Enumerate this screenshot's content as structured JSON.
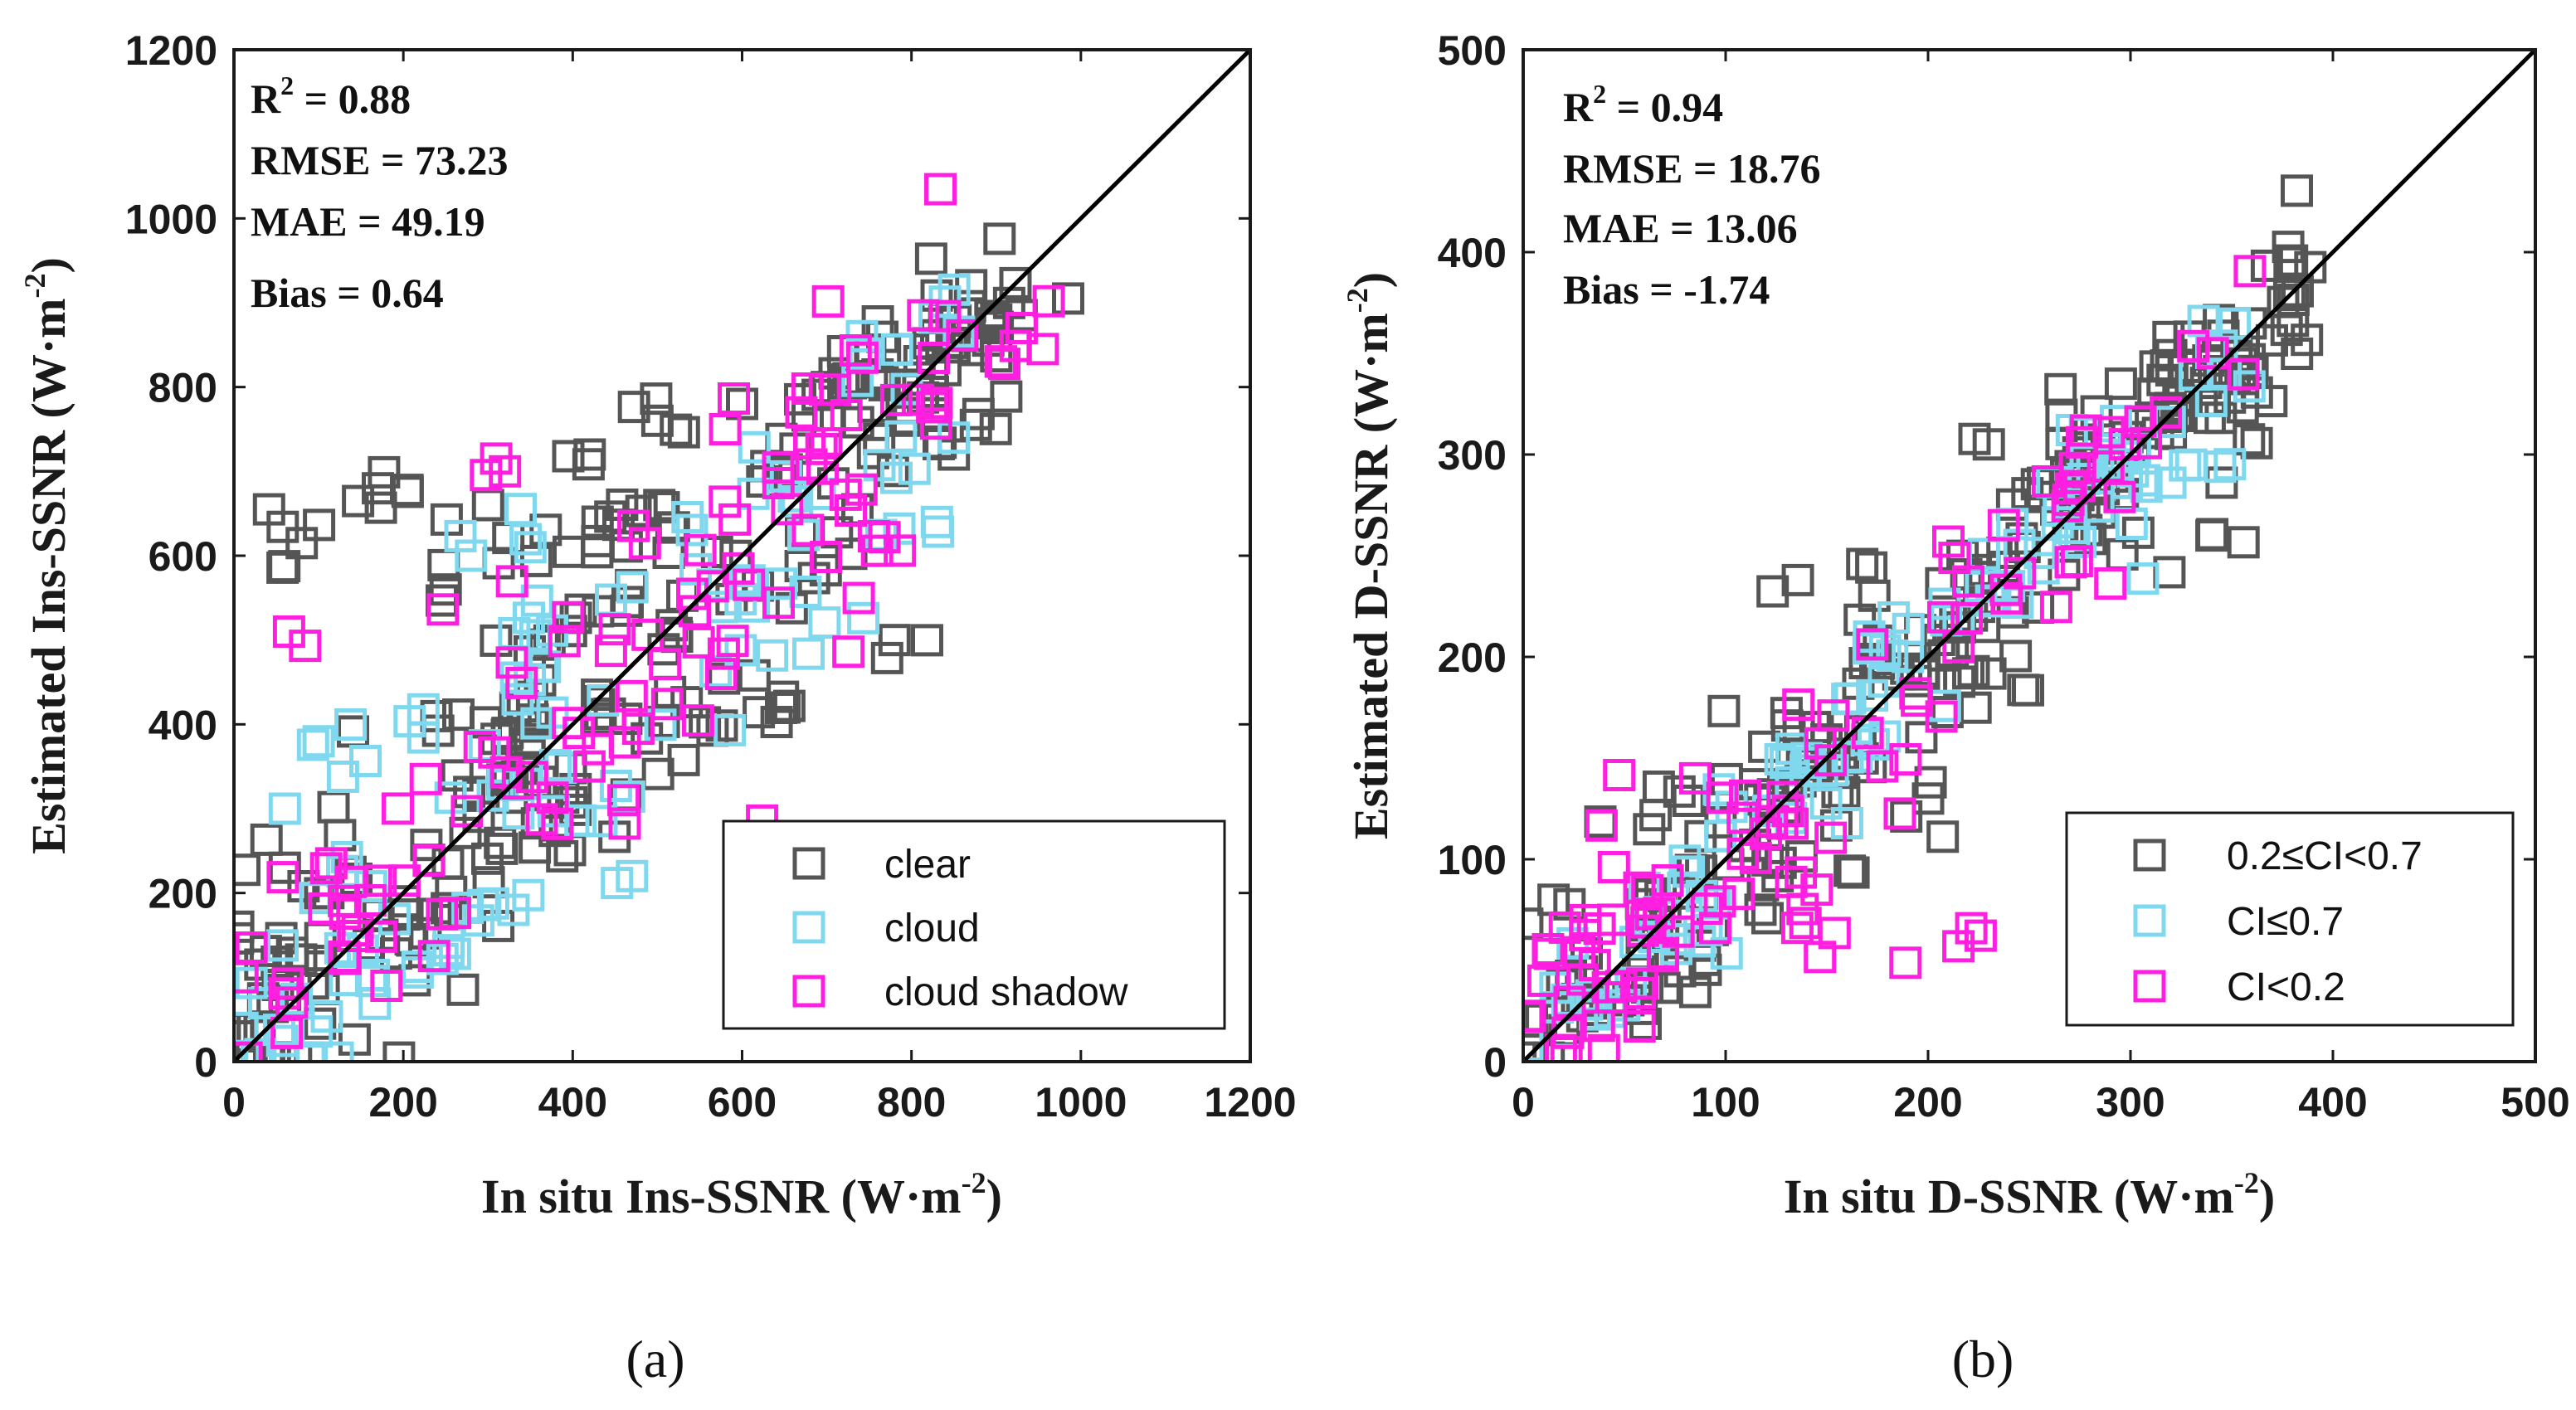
{
  "chart_data": [
    {
      "type": "scatter",
      "panel": "a",
      "caption": "(a)",
      "xlabel": "In situ Ins-SSNR (W·m",
      "xlabel_sup": "-2",
      "ylabel": "Estimated Ins-SSNR (W·m",
      "ylabel_sup": "-2",
      "xlim": [
        0,
        1200
      ],
      "ylim": [
        0,
        1200
      ],
      "xticks": [
        0,
        200,
        400,
        600,
        800,
        1000,
        1200
      ],
      "yticks": [
        0,
        200,
        400,
        600,
        800,
        1000,
        1200
      ],
      "reference_line": "1:1",
      "stats": {
        "r2_label": "R",
        "r2_sup": "2",
        "r2_value": " = 0.88",
        "rmse": "RMSE = 73.23",
        "mae": "MAE = 49.19",
        "bias": "Bias = 0.64"
      },
      "legend_position": "bottom-right",
      "series": [
        {
          "name": "clear",
          "color": "#555555",
          "color_key": "clear",
          "anchors": [
            [
              5,
              160
            ],
            [
              60,
              230
            ],
            [
              80,
              615
            ],
            [
              170,
              680
            ],
            [
              250,
              560
            ],
            [
              300,
              660
            ],
            [
              420,
              720
            ],
            [
              500,
              760
            ],
            [
              600,
              780
            ],
            [
              700,
              800
            ],
            [
              760,
              810
            ],
            [
              840,
              820
            ],
            [
              900,
              880
            ],
            [
              985,
              905
            ],
            [
              850,
              720
            ],
            [
              780,
              500
            ],
            [
              650,
              420
            ],
            [
              550,
              380
            ],
            [
              400,
              300
            ],
            [
              300,
              220
            ],
            [
              200,
              170
            ],
            [
              120,
              100
            ],
            [
              60,
              50
            ],
            [
              20,
              20
            ],
            [
              350,
              610
            ],
            [
              450,
              640
            ],
            [
              230,
              430
            ],
            [
              150,
              350
            ],
            [
              500,
              650
            ],
            [
              680,
              560
            ]
          ],
          "values": [
            [
              5,
              160
            ],
            [
              60,
              230
            ],
            [
              80,
              615
            ],
            [
              170,
              680
            ],
            [
              250,
              560
            ],
            [
              300,
              660
            ],
            [
              420,
              720
            ],
            [
              500,
              760
            ],
            [
              600,
              780
            ],
            [
              700,
              800
            ],
            [
              760,
              810
            ],
            [
              840,
              820
            ],
            [
              900,
              880
            ],
            [
              985,
              905
            ],
            [
              850,
              720
            ],
            [
              780,
              500
            ],
            [
              650,
              420
            ]
          ]
        },
        {
          "name": "cloud",
          "color": "#7fd8ee",
          "color_key": "cloud",
          "anchors": [
            [
              10,
              40
            ],
            [
              60,
              300
            ],
            [
              100,
              380
            ],
            [
              150,
              340
            ],
            [
              220,
              420
            ],
            [
              280,
              600
            ],
            [
              350,
              610
            ],
            [
              450,
              560
            ],
            [
              520,
              520
            ],
            [
              600,
              480
            ],
            [
              700,
              520
            ],
            [
              830,
              640
            ],
            [
              850,
              740
            ],
            [
              470,
              220
            ],
            [
              330,
              180
            ],
            [
              250,
              130
            ],
            [
              170,
              90
            ],
            [
              90,
              50
            ],
            [
              30,
              20
            ],
            [
              400,
              280
            ],
            [
              550,
              430
            ]
          ],
          "values": [
            [
              10,
              40
            ],
            [
              60,
              300
            ],
            [
              100,
              380
            ],
            [
              280,
              600
            ],
            [
              350,
              610
            ],
            [
              830,
              640
            ],
            [
              850,
              740
            ],
            [
              470,
              220
            ],
            [
              330,
              180
            ]
          ]
        },
        {
          "name": "cloud shadow",
          "color": "#ff1fe0",
          "color_key": "shadow",
          "anchors": [
            [
              10,
              100
            ],
            [
              65,
              510
            ],
            [
              130,
              180
            ],
            [
              200,
              460
            ],
            [
              300,
              560
            ],
            [
              320,
              700
            ],
            [
              420,
              520
            ],
            [
              480,
              630
            ],
            [
              580,
              750
            ],
            [
              670,
              770
            ],
            [
              700,
              700
            ],
            [
              760,
              620
            ],
            [
              780,
              800
            ],
            [
              930,
              870
            ],
            [
              955,
              845
            ],
            [
              460,
              310
            ],
            [
              360,
              300
            ],
            [
              250,
              150
            ],
            [
              180,
              90
            ],
            [
              60,
              80
            ],
            [
              120,
              160
            ],
            [
              540,
              560
            ],
            [
              620,
              680
            ],
            [
              500,
              500
            ]
          ],
          "values": [
            [
              10,
              100
            ],
            [
              65,
              510
            ],
            [
              320,
              700
            ],
            [
              580,
              750
            ],
            [
              670,
              770
            ],
            [
              930,
              870
            ],
            [
              955,
              845
            ],
            [
              460,
              310
            ],
            [
              180,
              90
            ]
          ]
        }
      ]
    },
    {
      "type": "scatter",
      "panel": "b",
      "caption": "(b)",
      "xlabel": "In situ D-SSNR (W·m",
      "xlabel_sup": "-2",
      "ylabel": "Estimated D-SSNR (W·m",
      "ylabel_sup": "-2",
      "xlim": [
        0,
        500
      ],
      "ylim": [
        0,
        500
      ],
      "xticks": [
        0,
        100,
        200,
        300,
        400,
        500
      ],
      "yticks": [
        0,
        100,
        200,
        300,
        400,
        500
      ],
      "reference_line": "1:1",
      "stats": {
        "r2_label": "R",
        "r2_sup": "2",
        "r2_value": " = 0.94",
        "rmse": "RMSE = 18.76",
        "mae": "MAE = 13.06",
        "bias": "Bias = -1.74"
      },
      "legend_position": "bottom-right",
      "series": [
        {
          "name": "0.2≤CI<0.7",
          "color": "#555555",
          "color_key": "clear",
          "anchors": [
            [
              5,
              10
            ],
            [
              15,
              80
            ],
            [
              40,
              110
            ],
            [
              70,
              140
            ],
            [
              100,
              180
            ],
            [
              130,
              220
            ],
            [
              160,
              240
            ],
            [
              200,
              250
            ],
            [
              230,
              305
            ],
            [
              280,
              310
            ],
            [
              310,
              330
            ],
            [
              355,
              345
            ],
            [
              355,
              320
            ],
            [
              340,
              260
            ],
            [
              300,
              250
            ],
            [
              250,
              180
            ],
            [
              200,
              130
            ],
            [
              160,
              90
            ],
            [
              120,
              70
            ],
            [
              80,
              40
            ],
            [
              40,
              15
            ],
            [
              180,
              200
            ],
            [
              260,
              280
            ],
            [
              220,
              210
            ],
            [
              140,
              150
            ]
          ],
          "values": [
            [
              15,
              80
            ],
            [
              230,
              305
            ],
            [
              355,
              345
            ],
            [
              340,
              260
            ],
            [
              200,
              130
            ]
          ]
        },
        {
          "name": "CI≤0.7",
          "color": "#7fd8ee",
          "color_key": "cloud",
          "anchors": [
            [
              10,
              15
            ],
            [
              40,
              30
            ],
            [
              90,
              90
            ],
            [
              140,
              150
            ],
            [
              170,
              165
            ],
            [
              190,
              200
            ],
            [
              240,
              235
            ],
            [
              260,
              275
            ],
            [
              290,
              300
            ],
            [
              330,
              295
            ],
            [
              110,
              110
            ],
            [
              150,
              120
            ],
            [
              70,
              60
            ],
            [
              30,
              20
            ]
          ],
          "values": [
            [
              140,
              150
            ],
            [
              190,
              200
            ],
            [
              240,
              235
            ],
            [
              290,
              300
            ],
            [
              330,
              295
            ]
          ]
        },
        {
          "name": "CI<0.2",
          "color": "#ff1fe0",
          "color_key": "shadow",
          "anchors": [
            [
              5,
              5
            ],
            [
              10,
              40
            ],
            [
              25,
              60
            ],
            [
              40,
              70
            ],
            [
              50,
              100
            ],
            [
              70,
              90
            ],
            [
              85,
              140
            ],
            [
              110,
              110
            ],
            [
              130,
              120
            ],
            [
              140,
              100
            ],
            [
              145,
              85
            ],
            [
              140,
              80
            ],
            [
              215,
              57
            ],
            [
              20,
              15
            ],
            [
              35,
              30
            ],
            [
              60,
              50
            ],
            [
              45,
              35
            ],
            [
              15,
              25
            ]
          ],
          "values": [
            [
              85,
              140
            ],
            [
              145,
              85
            ],
            [
              215,
              57
            ],
            [
              10,
              40
            ]
          ]
        }
      ]
    }
  ]
}
